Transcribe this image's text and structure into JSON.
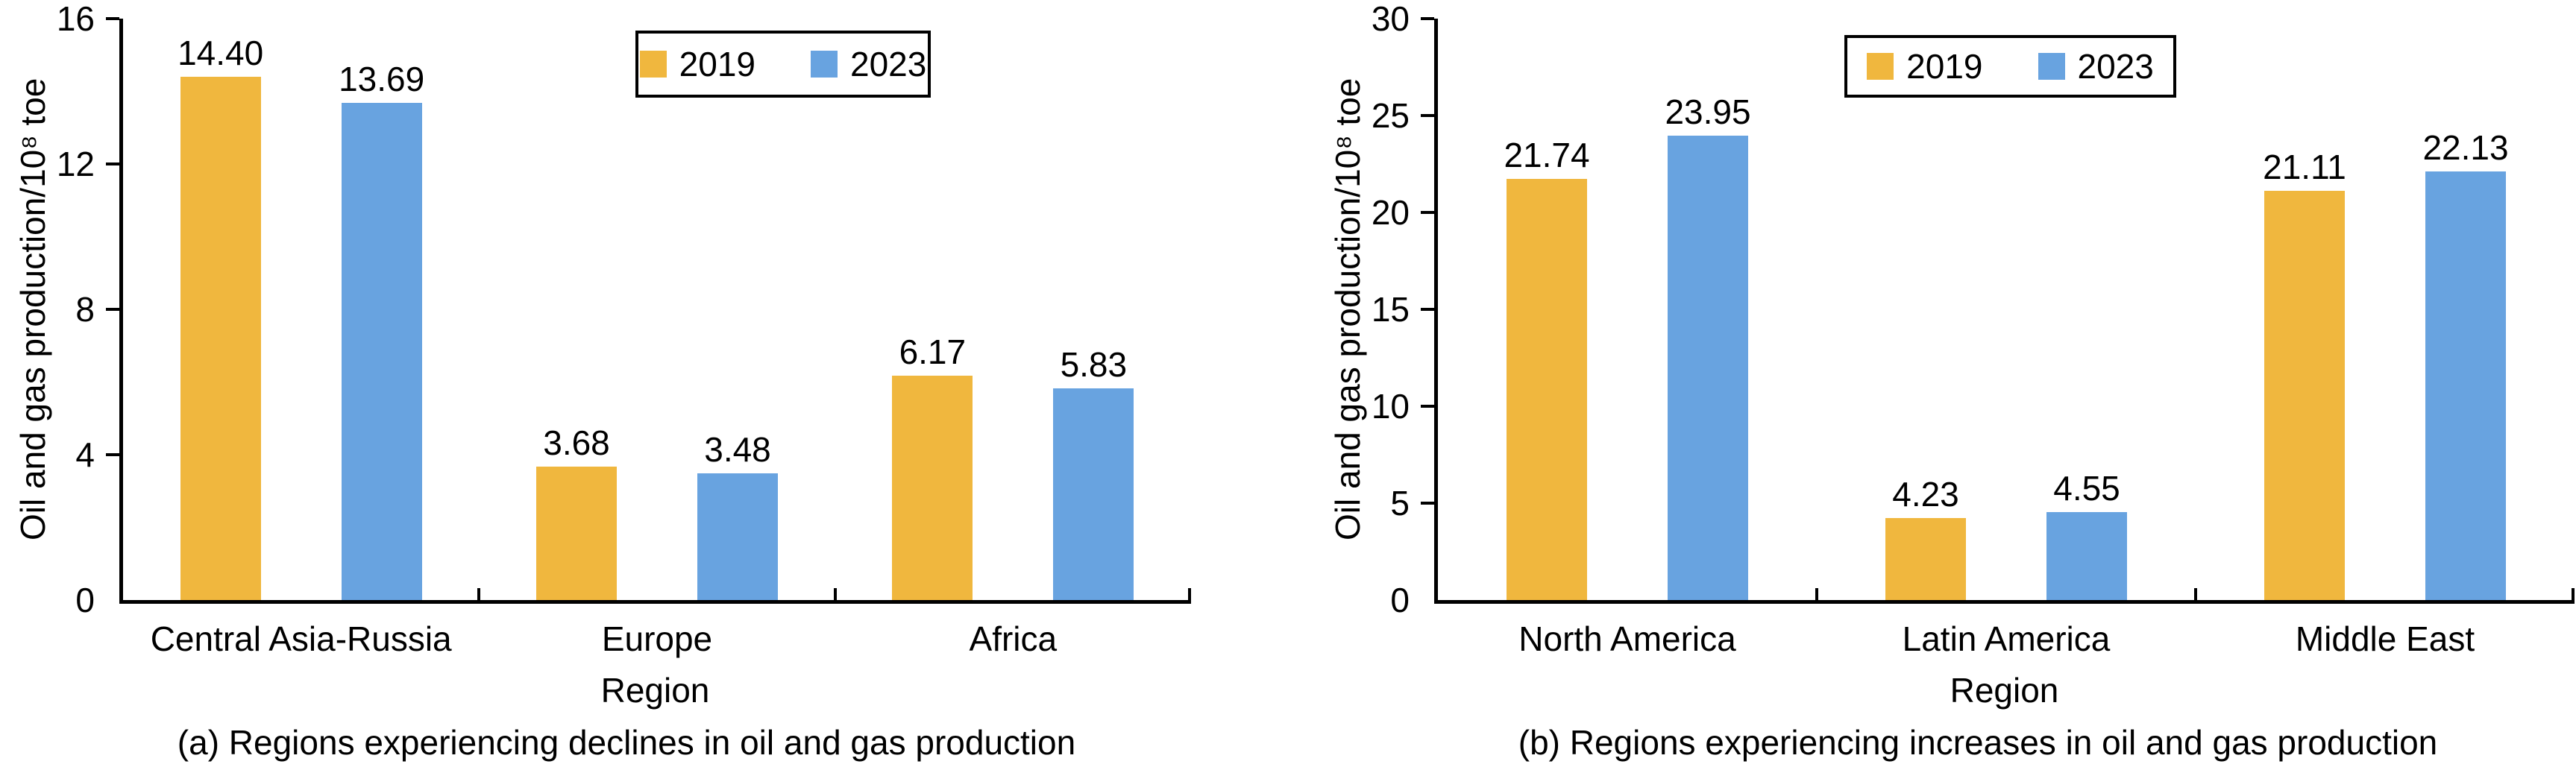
{
  "colors": {
    "series_2019": "#F0B73E",
    "series_2023": "#68A3E0",
    "axis": "#000000",
    "background": "#FFFFFF"
  },
  "chart_data": [
    {
      "type": "bar",
      "panel": "a",
      "title": "(a) Regions experiencing declines in oil and gas production",
      "xlabel": "Region",
      "ylabel": "Oil and gas production/10⁸ toe",
      "categories": [
        "Central Asia-Russia",
        "Europe",
        "Africa"
      ],
      "series": [
        {
          "name": "2019",
          "values": [
            14.4,
            3.68,
            6.17
          ],
          "labels": [
            "14.40",
            "3.68",
            "6.17"
          ]
        },
        {
          "name": "2023",
          "values": [
            13.69,
            3.48,
            5.83
          ],
          "labels": [
            "13.69",
            "3.48",
            "5.83"
          ]
        }
      ],
      "ylim": [
        0,
        16
      ],
      "yticks": [
        0,
        4,
        8,
        12,
        16
      ],
      "grid": false,
      "legend_position": "top-center"
    },
    {
      "type": "bar",
      "panel": "b",
      "title": "(b) Regions experiencing increases in oil and gas production",
      "xlabel": "Region",
      "ylabel": "Oil and gas production/10⁸ toe",
      "categories": [
        "North America",
        "Latin America",
        "Middle East"
      ],
      "series": [
        {
          "name": "2019",
          "values": [
            21.74,
            4.23,
            21.11
          ],
          "labels": [
            "21.74",
            "4.23",
            "21.11"
          ]
        },
        {
          "name": "2023",
          "values": [
            23.95,
            4.55,
            22.13
          ],
          "labels": [
            "23.95",
            "4.55",
            "22.13"
          ]
        }
      ],
      "ylim": [
        0,
        30
      ],
      "yticks": [
        0,
        5,
        10,
        15,
        20,
        25,
        30
      ],
      "grid": false,
      "legend_position": "top-center"
    }
  ]
}
